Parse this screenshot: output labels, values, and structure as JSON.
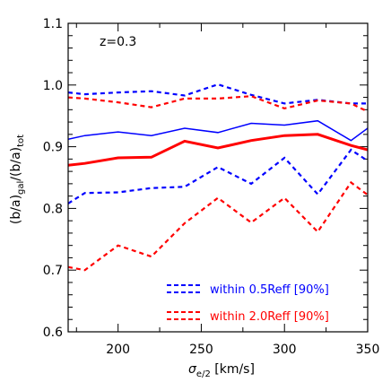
{
  "chart_data": {
    "type": "line",
    "annotation": "z=0.3",
    "xlabel": {
      "base": "σ",
      "sub": "e/2",
      "unit": " [km/s]"
    },
    "ylabel": {
      "a": "(b/a)",
      "a_sub": "gal",
      "slash": "/(b/a)",
      "b_sub": "tot"
    },
    "xlim": [
      170,
      350
    ],
    "ylim": [
      0.6,
      1.1
    ],
    "x_ticks": [
      {
        "value": 200,
        "label": "200"
      },
      {
        "value": 250,
        "label": "250"
      },
      {
        "value": 300,
        "label": "300"
      },
      {
        "value": 350,
        "label": "350"
      }
    ],
    "y_ticks": [
      {
        "value": 0.6,
        "label": "0.6"
      },
      {
        "value": 0.7,
        "label": "0.7"
      },
      {
        "value": 0.8,
        "label": "0.8"
      },
      {
        "value": 0.9,
        "label": "0.9"
      },
      {
        "value": 1.0,
        "label": "1.0"
      },
      {
        "value": 1.1,
        "label": "1.1"
      }
    ],
    "x": [
      170,
      180,
      200,
      220,
      240,
      260,
      280,
      300,
      320,
      340,
      350
    ],
    "series": [
      {
        "name": "within 0.5Reff",
        "color": "#0000ff",
        "style": "solid",
        "values": [
          0.912,
          0.918,
          0.924,
          0.918,
          0.93,
          0.923,
          0.938,
          0.935,
          0.942,
          0.91,
          0.93
        ]
      },
      {
        "name": "within 0.5Reff [90%]",
        "color": "#0000ff",
        "style": "dashed",
        "values": [
          0.988,
          0.985,
          0.988,
          0.99,
          0.983,
          1.001,
          0.984,
          0.97,
          0.976,
          0.97,
          0.97
        ]
      },
      {
        "name": "within 0.5Reff [90%]",
        "color": "#0000ff",
        "style": "dashed",
        "values": [
          0.808,
          0.825,
          0.826,
          0.833,
          0.835,
          0.867,
          0.84,
          0.882,
          0.823,
          0.895,
          0.877
        ]
      },
      {
        "name": "within 2.0Reff",
        "color": "#ff0000",
        "style": "solid",
        "values": [
          0.87,
          0.873,
          0.882,
          0.883,
          0.909,
          0.898,
          0.91,
          0.918,
          0.92,
          0.902,
          0.895
        ]
      },
      {
        "name": "within 2.0Reff [90%]",
        "color": "#ff0000",
        "style": "dashed",
        "values": [
          0.98,
          0.978,
          0.972,
          0.964,
          0.978,
          0.978,
          0.982,
          0.962,
          0.975,
          0.97,
          0.957
        ]
      },
      {
        "name": "within 2.0Reff [90%]",
        "color": "#ff0000",
        "style": "dashed",
        "values": [
          0.705,
          0.7,
          0.74,
          0.722,
          0.776,
          0.817,
          0.777,
          0.817,
          0.762,
          0.842,
          0.822
        ]
      }
    ],
    "legend": {
      "placement": "bottom-right",
      "items": [
        {
          "label": "within 0.5Reff [90%]",
          "color": "#0000ff"
        },
        {
          "label": "within 2.0Reff [90%]",
          "color": "#ff0000"
        }
      ]
    }
  }
}
